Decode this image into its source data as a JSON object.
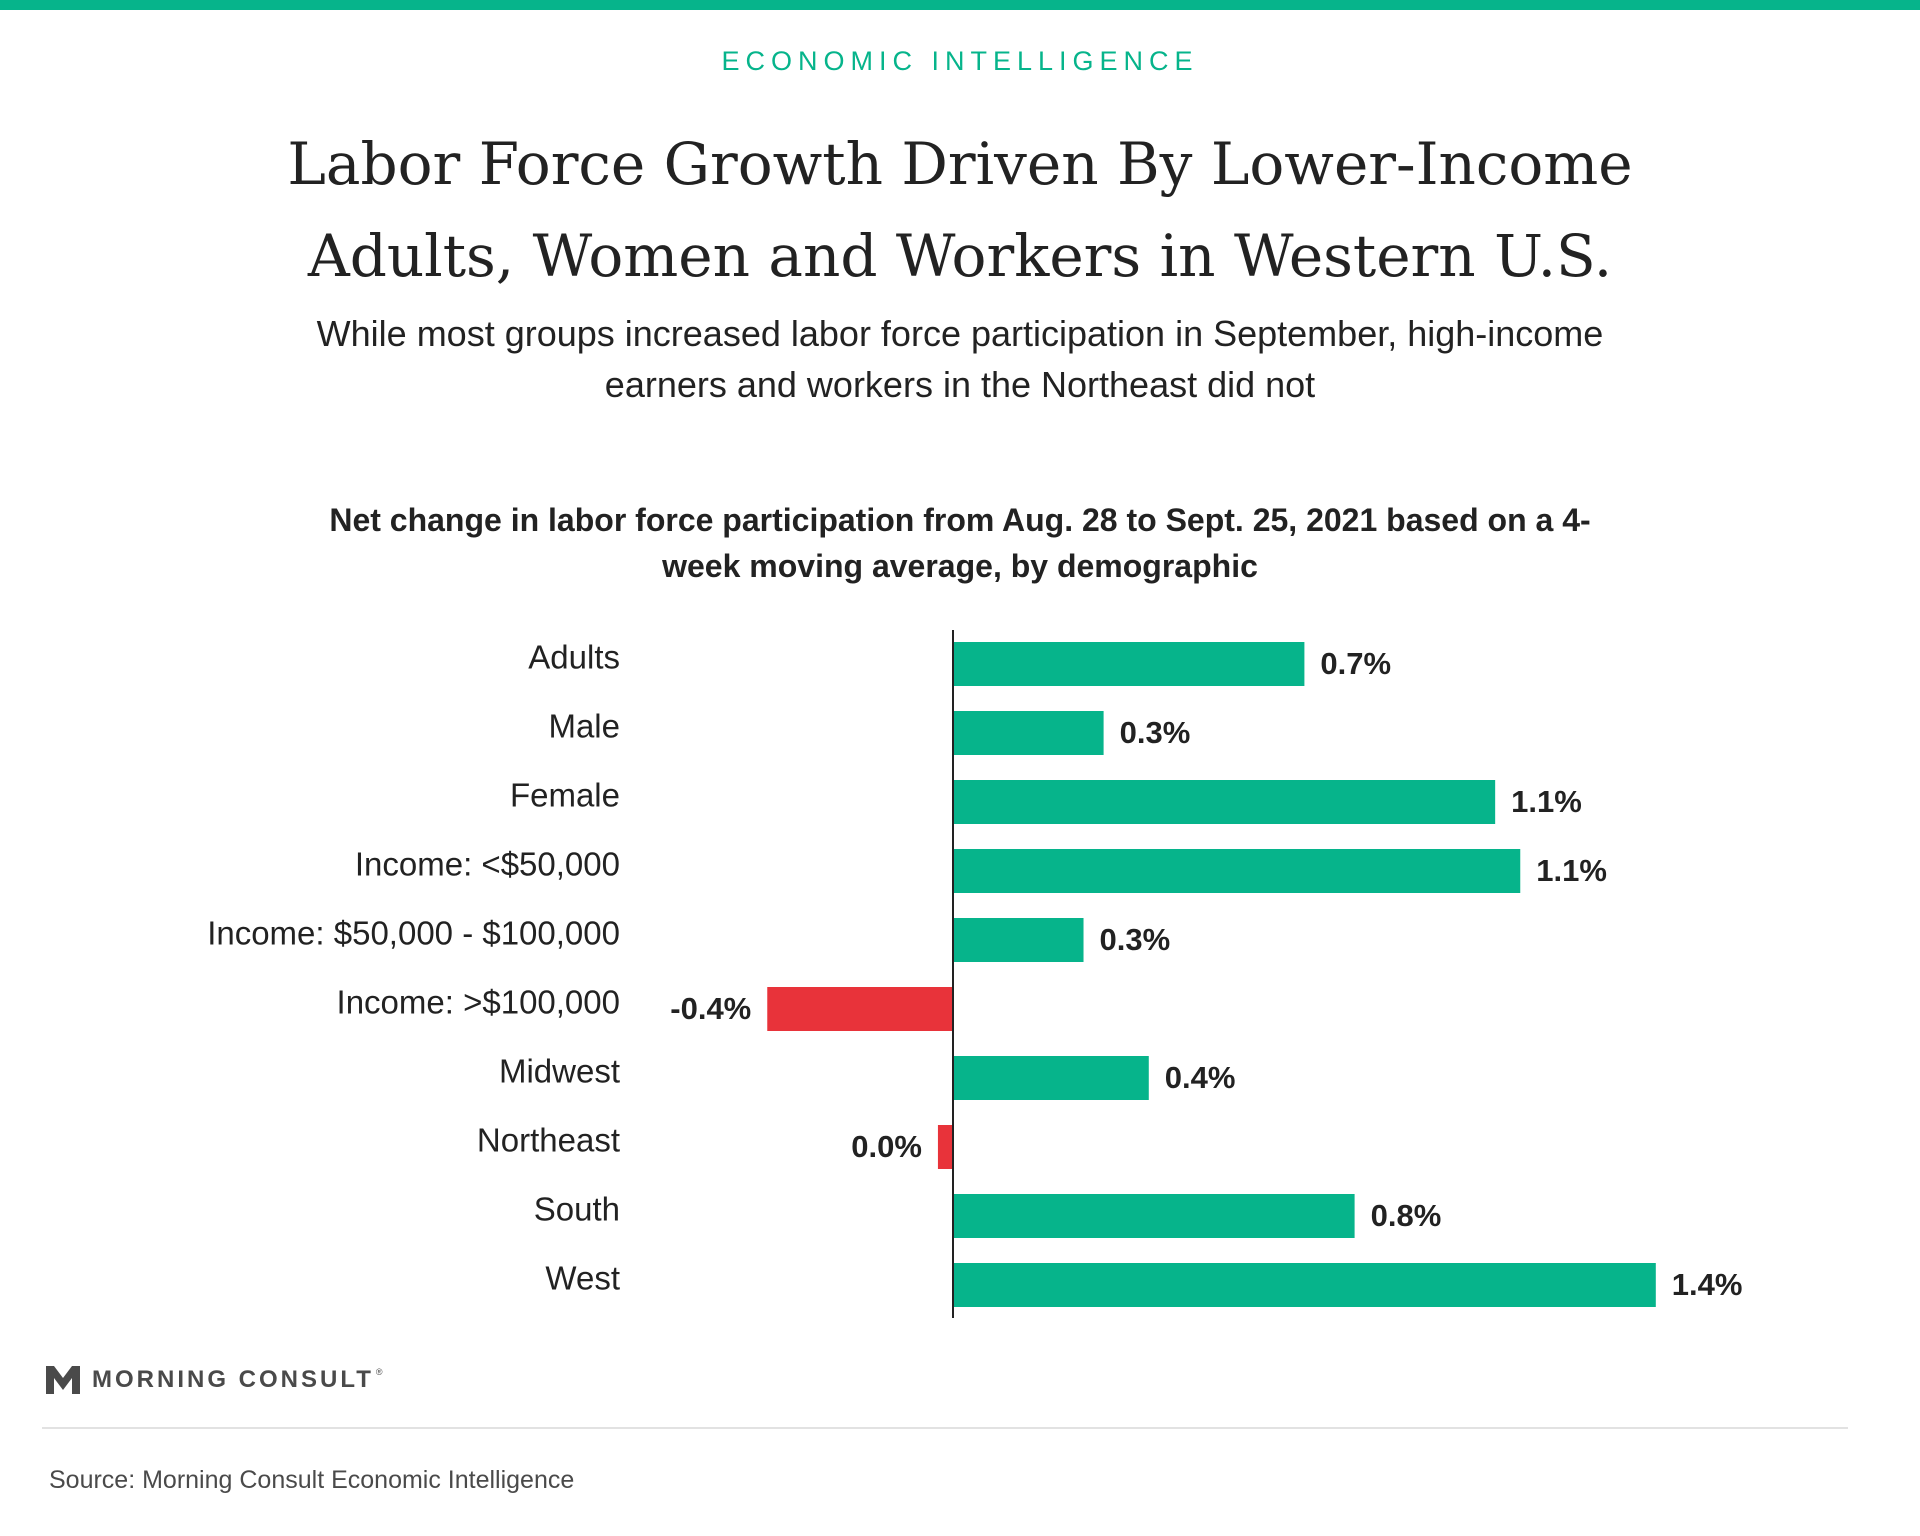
{
  "header": {
    "kicker": "ECONOMIC INTELLIGENCE",
    "title": "Labor Force Growth Driven By Lower-Income Adults, Women and Workers in Western U.S.",
    "subtitle": "While most groups increased labor force participation in September, high-income earners and workers in the Northeast did not"
  },
  "colors": {
    "accent": "#06b48b",
    "positive": "#06b48b",
    "negative": "#e8333a",
    "text": "#222222"
  },
  "chart_data": {
    "type": "bar",
    "orientation": "horizontal",
    "title": "Net change in labor force participation from Aug. 28 to Sept. 25, 2021 based on a 4-week moving average, by demographic",
    "categories": [
      "Adults",
      "Male",
      "Female",
      "Income: <$50,000",
      "Income: $50,000 - $100,000",
      "Income: >$100,000",
      "Midwest",
      "Northeast",
      "South",
      "West"
    ],
    "values": [
      0.7,
      0.3,
      1.08,
      1.13,
      0.26,
      -0.37,
      0.39,
      -0.03,
      0.8,
      1.4
    ],
    "labels": [
      "0.7%",
      "0.3%",
      "1.1%",
      "1.1%",
      "0.3%",
      "-0.4%",
      "0.4%",
      "0.0%",
      "0.8%",
      "1.4%"
    ],
    "unit": "%",
    "xlim": [
      -0.62,
      1.55
    ],
    "grid": false,
    "legend": "none"
  },
  "logo": {
    "name": "MORNING CONSULT",
    "trademark": "®"
  },
  "footer": {
    "source": "Source: Morning Consult Economic Intelligence"
  }
}
